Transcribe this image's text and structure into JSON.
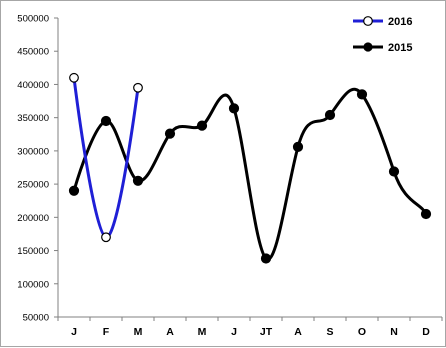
{
  "chart_data": {
    "type": "line",
    "categories": [
      "J",
      "F",
      "M",
      "A",
      "M",
      "J",
      "JT",
      "A",
      "S",
      "O",
      "N",
      "D"
    ],
    "series": [
      {
        "name": "2016",
        "color": "#1f1fd6",
        "marker": "open-circle",
        "values": [
          410000,
          170000,
          395000,
          null,
          null,
          null,
          null,
          null,
          null,
          null,
          null,
          null
        ]
      },
      {
        "name": "2015",
        "color": "#000000",
        "marker": "filled-circle",
        "values": [
          240000,
          345000,
          255000,
          326000,
          338000,
          364000,
          138000,
          306000,
          354000,
          385000,
          269000,
          205000
        ]
      }
    ],
    "yticks": [
      50000,
      100000,
      150000,
      200000,
      250000,
      300000,
      350000,
      400000,
      450000,
      500000
    ],
    "ylim": [
      50000,
      500000
    ],
    "grid": false,
    "legend_position": "top-right",
    "smooth": true,
    "title": "",
    "xlabel": "",
    "ylabel": ""
  }
}
